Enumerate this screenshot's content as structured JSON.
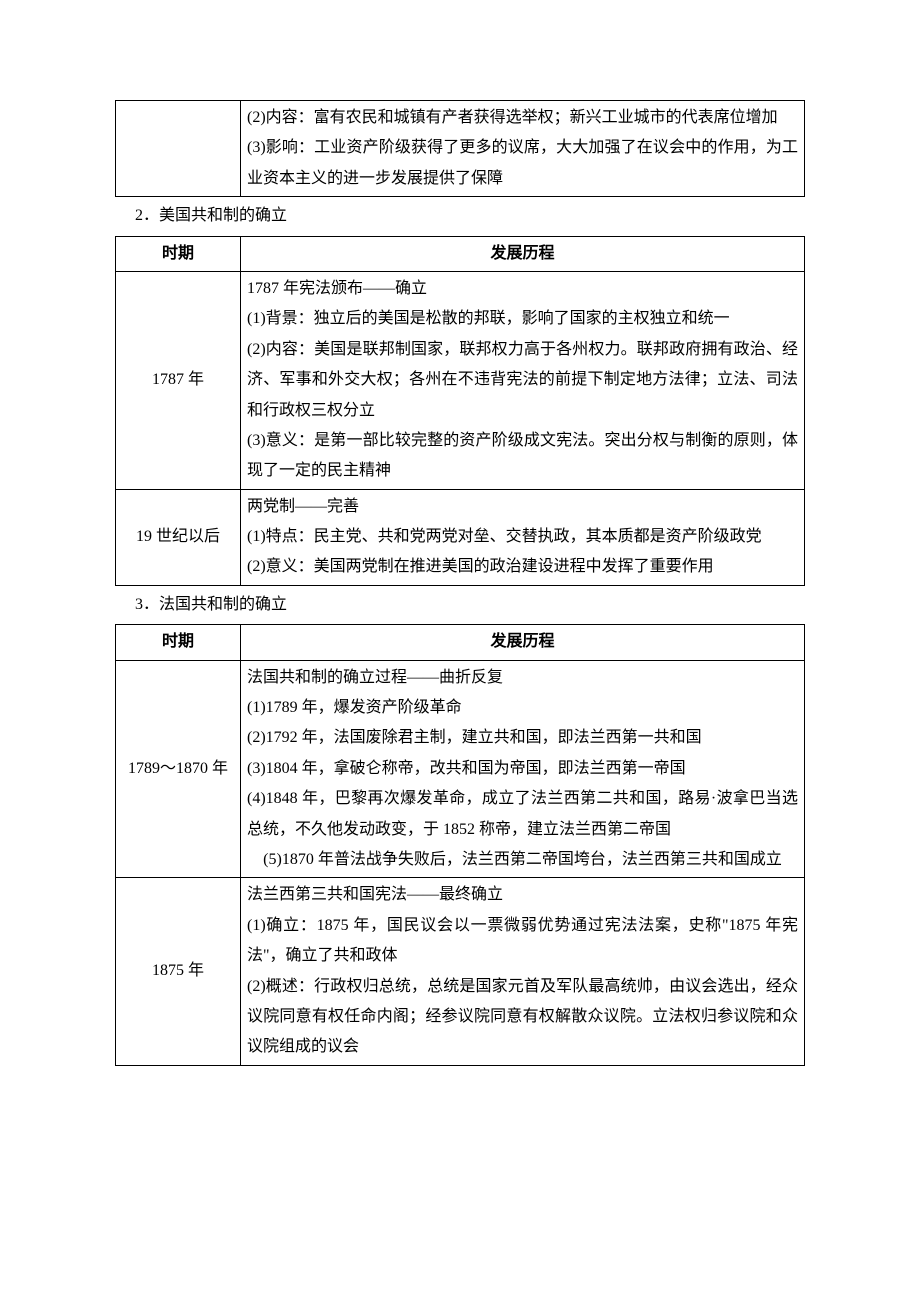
{
  "fragment_continuation": {
    "content_lines": [
      "(2)内容：富有农民和城镇有产者获得选举权；新兴工业城市的代表席位增加",
      "(3)影响：工业资产阶级获得了更多的议席，大大加强了在议会中的作用，为工业资本主义的进一步发展提供了保障"
    ]
  },
  "section2": {
    "heading": "2．美国共和制的确立",
    "header_period": "时期",
    "header_course": "发展历程",
    "rows": [
      {
        "period": "1787 年",
        "lines": [
          "1787 年宪法颁布——确立",
          "(1)背景：独立后的美国是松散的邦联，影响了国家的主权独立和统一",
          "(2)内容：美国是联邦制国家，联邦权力高于各州权力。联邦政府拥有政治、经济、军事和外交大权；各州在不违背宪法的前提下制定地方法律；立法、司法和行政权三权分立",
          "(3)意义：是第一部比较完整的资产阶级成文宪法。突出分权与制衡的原则，体现了一定的民主精神"
        ]
      },
      {
        "period": "19 世纪以后",
        "lines": [
          "两党制——完善",
          "(1)特点：民主党、共和党两党对垒、交替执政，其本质都是资产阶级政党",
          "(2)意义：美国两党制在推进美国的政治建设进程中发挥了重要作用"
        ]
      }
    ]
  },
  "section3": {
    "heading": "3．法国共和制的确立",
    "header_period": "时期",
    "header_course": "发展历程",
    "rows": [
      {
        "period": "1789～1870 年",
        "lines": [
          "法国共和制的确立过程——曲折反复",
          "(1)1789 年，爆发资产阶级革命",
          "(2)1792 年，法国废除君主制，建立共和国，即法兰西第一共和国",
          "(3)1804 年，拿破仑称帝，改共和国为帝国，即法兰西第一帝国",
          "(4)1848 年，巴黎再次爆发革命，成立了法兰西第二共和国，路易·波拿巴当选总统，不久他发动政变，于 1852 称帝，建立法兰西第二帝国",
          "(5)1870 年普法战争失败后，法兰西第二帝国垮台，法兰西第三共和国成立"
        ],
        "last_center": true
      },
      {
        "period": "1875 年",
        "lines": [
          "法兰西第三共和国宪法——最终确立",
          "(1)确立：1875 年，国民议会以一票微弱优势通过宪法法案，史称\"1875 年宪法\"，确立了共和政体",
          "(2)概述：行政权归总统，总统是国家元首及军队最高统帅，由议会选出，经众议院同意有权任命内阁；经参议院同意有权解散众议院。立法权归参议院和众议院组成的议会"
        ]
      }
    ]
  }
}
